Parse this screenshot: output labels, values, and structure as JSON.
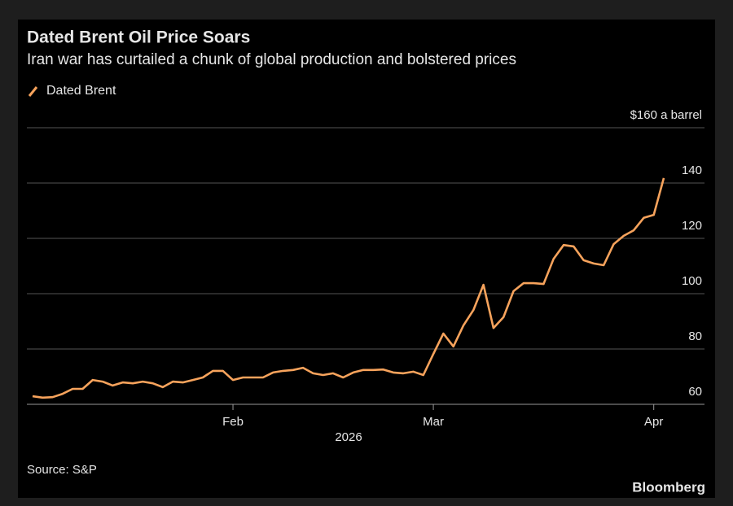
{
  "chart_data": {
    "type": "line",
    "title": "Dated Brent Oil Price Soars",
    "subtitle": "Iran war has curtailed a chunk of global production and bolstered prices",
    "xlabel": "2026",
    "source": "Source: S&P",
    "brand": "Bloomberg",
    "categories": [
      null,
      null,
      null,
      null,
      null,
      null,
      null,
      null,
      null,
      null,
      null,
      null,
      null,
      null,
      null,
      null,
      null,
      null,
      null,
      null,
      "Feb",
      null,
      null,
      null,
      null,
      null,
      null,
      null,
      null,
      null,
      null,
      null,
      null,
      null,
      null,
      null,
      null,
      null,
      null,
      null,
      "Mar",
      null,
      null,
      null,
      null,
      null,
      null,
      null,
      null,
      null,
      null,
      null,
      null,
      null,
      null,
      null,
      null,
      null,
      null,
      null,
      null,
      null,
      "Apr",
      null
    ],
    "series": [
      {
        "name": "Dated Brent",
        "color": "#f7a35c",
        "values": [
          62.9,
          62.4,
          62.6,
          63.8,
          65.6,
          65.6,
          68.8,
          68.2,
          66.8,
          67.9,
          67.6,
          68.2,
          67.6,
          66.2,
          68.2,
          67.9,
          68.8,
          69.7,
          72.1,
          72.1,
          68.8,
          69.7,
          69.7,
          69.7,
          71.5,
          72.1,
          72.4,
          73.2,
          71.2,
          70.6,
          71.2,
          69.7,
          71.5,
          72.4,
          72.4,
          72.6,
          71.5,
          71.2,
          71.8,
          70.6,
          78.2,
          85.6,
          80.9,
          88.5,
          94.1,
          103.2,
          87.6,
          91.5,
          100.9,
          103.8,
          103.8,
          103.5,
          112.6,
          117.6,
          117.1,
          112.1,
          110.9,
          110.3,
          117.9,
          120.9,
          122.9,
          127.4,
          128.5,
          141.8
        ]
      }
    ],
    "ylim": [
      60,
      160
    ],
    "yticks": [
      60,
      80,
      100,
      120,
      140,
      {
        "value": 160,
        "label": "$160 a barrel"
      }
    ],
    "grid": true,
    "legend": "top-left"
  }
}
